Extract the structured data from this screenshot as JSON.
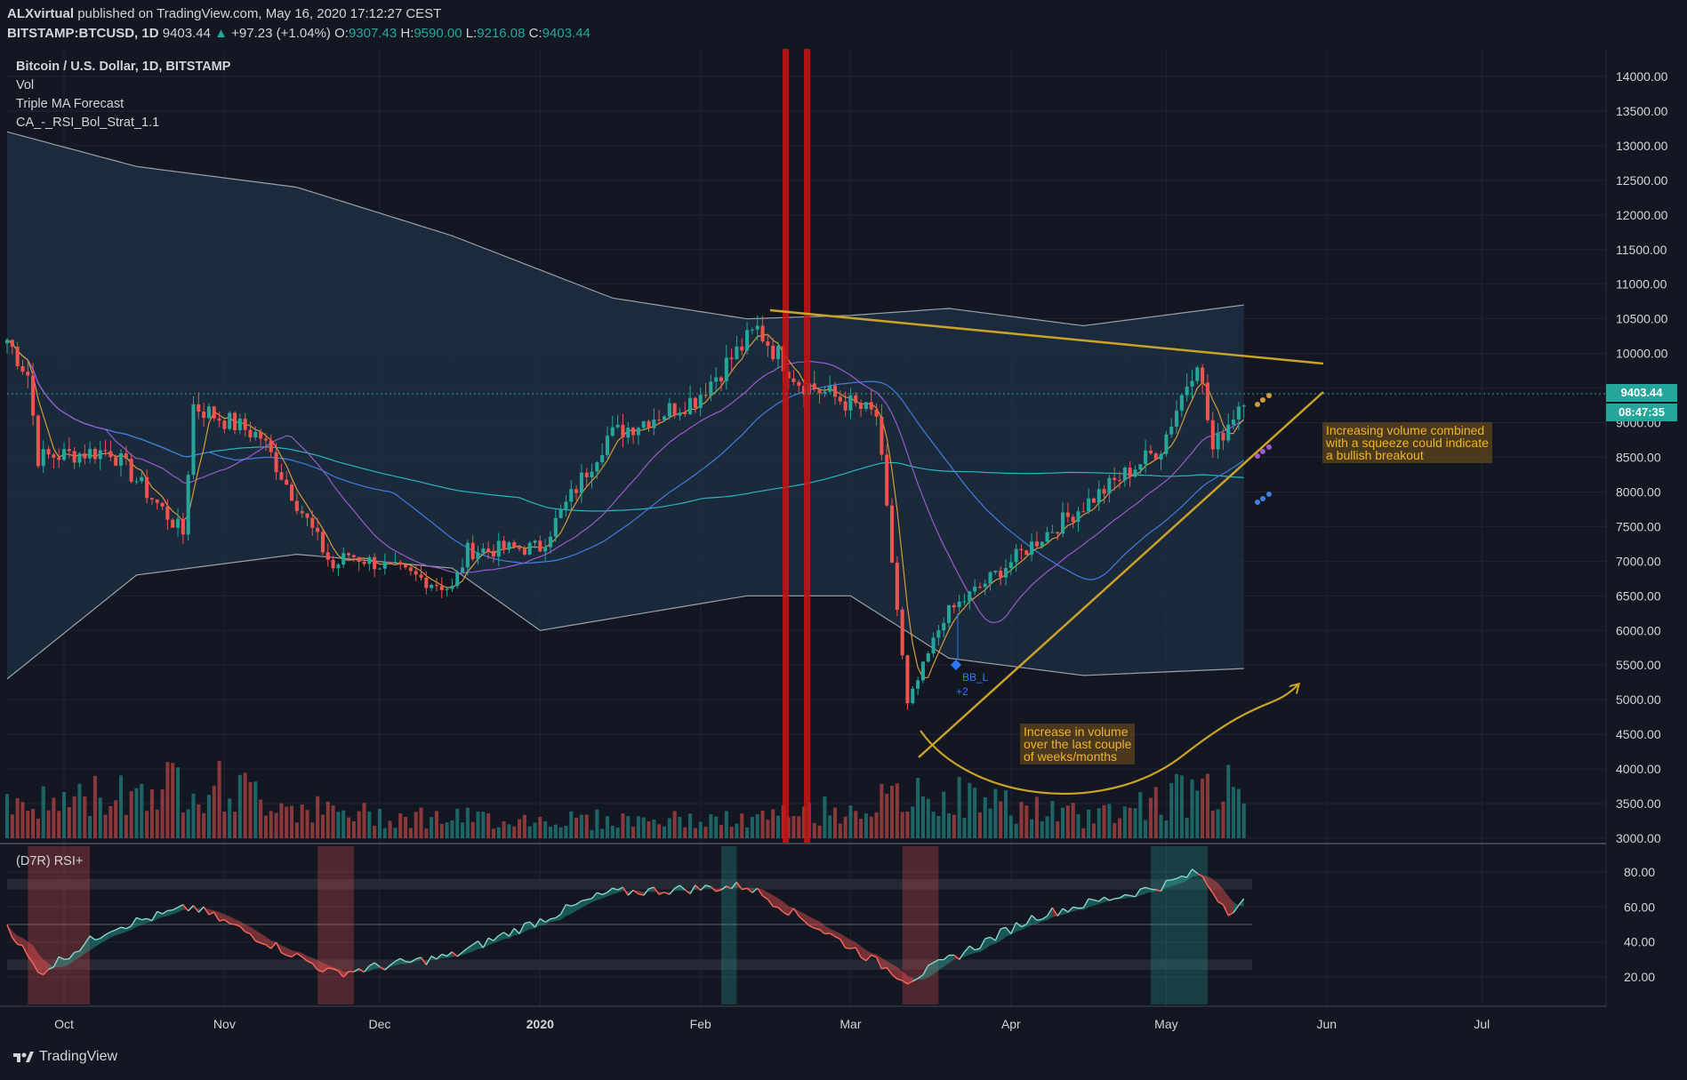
{
  "header": {
    "published_user": "ALXvirtual",
    "published_rest": "published on TradingView.com, May 16, 2020 17:12:27 CEST",
    "symbol": "BITSTAMP:BTCUSD, 1D",
    "last_price": "9403.44",
    "change": "+97.23 (+1.04%)",
    "o_label": "O:",
    "o_value": "9307.43",
    "h_label": "H:",
    "h_value": "9590.00",
    "l_label": "L:",
    "l_value": "9216.08",
    "c_label": "C:",
    "c_value": "9403.44"
  },
  "legend": {
    "title": "Bitcoin / U.S. Dollar, 1D, BITSTAMP",
    "vol": "Vol",
    "triple_ma": "Triple MA Forecast",
    "strategy": "CA_-_RSI_Bol_Strat_1.1",
    "rsi_title": "(D7R) RSI+"
  },
  "price_tags": {
    "last": "9403.44",
    "countdown": "08:47:35"
  },
  "signal_label": {
    "name": "BB_L",
    "qty": "+2"
  },
  "annotations": {
    "volume_note": [
      "Increase in volume",
      "over the last couple",
      "of weeks/months"
    ],
    "squeeze_note": [
      "Increasing volume combined",
      "with a squeeze could indicate",
      "a bullish breakout"
    ]
  },
  "footer": {
    "brand": "TradingView"
  },
  "colors": {
    "up": "#26a69a",
    "down": "#ef5350",
    "background": "#131722",
    "annotation": "#c9a227",
    "marker": "#c81414"
  },
  "chart_data": {
    "type": "candlestick",
    "price_axis": {
      "ticks": [
        14000,
        13500,
        13000,
        12500,
        12000,
        11500,
        11000,
        10500,
        10000,
        9500,
        9000,
        8500,
        8000,
        7500,
        7000,
        6500,
        6000,
        5500,
        5000,
        4500,
        4000,
        3500,
        3000
      ],
      "tick_labels": [
        "14000.00",
        "13500.00",
        "13000.00",
        "12500.00",
        "12000.00",
        "11500.00",
        "11000.00",
        "10500.00",
        "10000.00",
        "9500.00",
        "9000.00",
        "8500.00",
        "8000.00",
        "7500.00",
        "7000.00",
        "6500.00",
        "6000.00",
        "5500.00",
        "5000.00",
        "4500.00",
        "4000.00",
        "3500.00",
        "3000.00"
      ],
      "ylim": [
        3000,
        14300
      ]
    },
    "rsi_axis": {
      "tick_labels": [
        "80.00",
        "60.00",
        "40.00",
        "20.00"
      ],
      "ticks": [
        80,
        60,
        40,
        20
      ],
      "ylim": [
        5,
        98
      ]
    },
    "time_axis": {
      "labels": [
        "Oct",
        "Nov",
        "Dec",
        "2020",
        "Feb",
        "Mar",
        "Apr",
        "May",
        "Jun",
        "Jul"
      ],
      "dates": [
        "2019-10-01",
        "2019-11-01",
        "2019-12-01",
        "2020-01-01",
        "2020-02-01",
        "2020-03-01",
        "2020-04-01",
        "2020-05-01",
        "2020-06-01",
        "2020-07-01"
      ],
      "range": [
        "2019-09-20",
        "2020-07-25"
      ]
    },
    "series": [
      {
        "name": "BTCUSD close (approx.)",
        "x": [
          "2019-09-20",
          "2019-09-24",
          "2019-09-26",
          "2019-10-10",
          "2019-10-24",
          "2019-10-26",
          "2019-11-08",
          "2019-11-22",
          "2019-11-25",
          "2019-12-15",
          "2019-12-18",
          "2020-01-01",
          "2020-01-14",
          "2020-01-31",
          "2020-02-12",
          "2020-02-20",
          "2020-03-06",
          "2020-03-12",
          "2020-03-19",
          "2020-04-06",
          "2020-04-30",
          "2020-05-07",
          "2020-05-10",
          "2020-05-16"
        ],
        "values": [
          10200,
          9700,
          8500,
          8600,
          7400,
          9250,
          8800,
          6900,
          7100,
          6600,
          7150,
          7200,
          8800,
          9350,
          10350,
          9600,
          9100,
          4900,
          6200,
          7300,
          8650,
          9950,
          8600,
          9403
        ]
      },
      {
        "name": "Bollinger upper (approx.)",
        "x": [
          "2019-09-20",
          "2019-10-15",
          "2019-11-15",
          "2019-12-15",
          "2020-01-15",
          "2020-02-10",
          "2020-03-01",
          "2020-03-20",
          "2020-04-15",
          "2020-05-16"
        ],
        "values": [
          13200,
          12700,
          12400,
          11700,
          10800,
          10500,
          10550,
          10650,
          10400,
          10700
        ]
      },
      {
        "name": "Bollinger lower (approx.)",
        "x": [
          "2019-09-20",
          "2019-10-15",
          "2019-11-15",
          "2019-12-15",
          "2020-01-01",
          "2020-02-10",
          "2020-03-01",
          "2020-03-20",
          "2020-04-15",
          "2020-05-16"
        ],
        "values": [
          5300,
          6800,
          7100,
          6900,
          6000,
          6500,
          6500,
          5600,
          5350,
          5450
        ]
      },
      {
        "name": "Volume (relative)",
        "x": [
          "2019-09-24",
          "2019-10-26",
          "2019-11-22",
          "2019-12-18",
          "2020-02-10",
          "2020-03-12",
          "2020-03-20",
          "2020-04-15",
          "2020-05-09"
        ],
        "values": [
          0.45,
          0.82,
          0.35,
          0.28,
          0.25,
          0.55,
          0.6,
          0.3,
          0.7
        ]
      },
      {
        "name": "RSI (approx.)",
        "x": [
          "2019-09-20",
          "2019-09-26",
          "2019-10-10",
          "2019-10-26",
          "2019-11-22",
          "2019-12-15",
          "2020-01-14",
          "2020-02-10",
          "2020-03-12",
          "2020-04-06",
          "2020-04-30",
          "2020-05-07",
          "2020-05-13",
          "2020-05-16"
        ],
        "values": [
          50,
          22,
          48,
          60,
          22,
          32,
          68,
          72,
          18,
          55,
          72,
          80,
          58,
          63
        ]
      }
    ],
    "trendlines": [
      {
        "label": "descending resistance",
        "x": [
          "2020-02-08",
          "2020-05-27"
        ],
        "y": [
          10650,
          9850
        ]
      },
      {
        "label": "ascending support",
        "x": [
          "2020-03-13",
          "2020-05-27"
        ],
        "y": [
          4200,
          9450
        ]
      }
    ],
    "vertical_markers": [
      "2020-02-13",
      "2020-02-19"
    ]
  }
}
